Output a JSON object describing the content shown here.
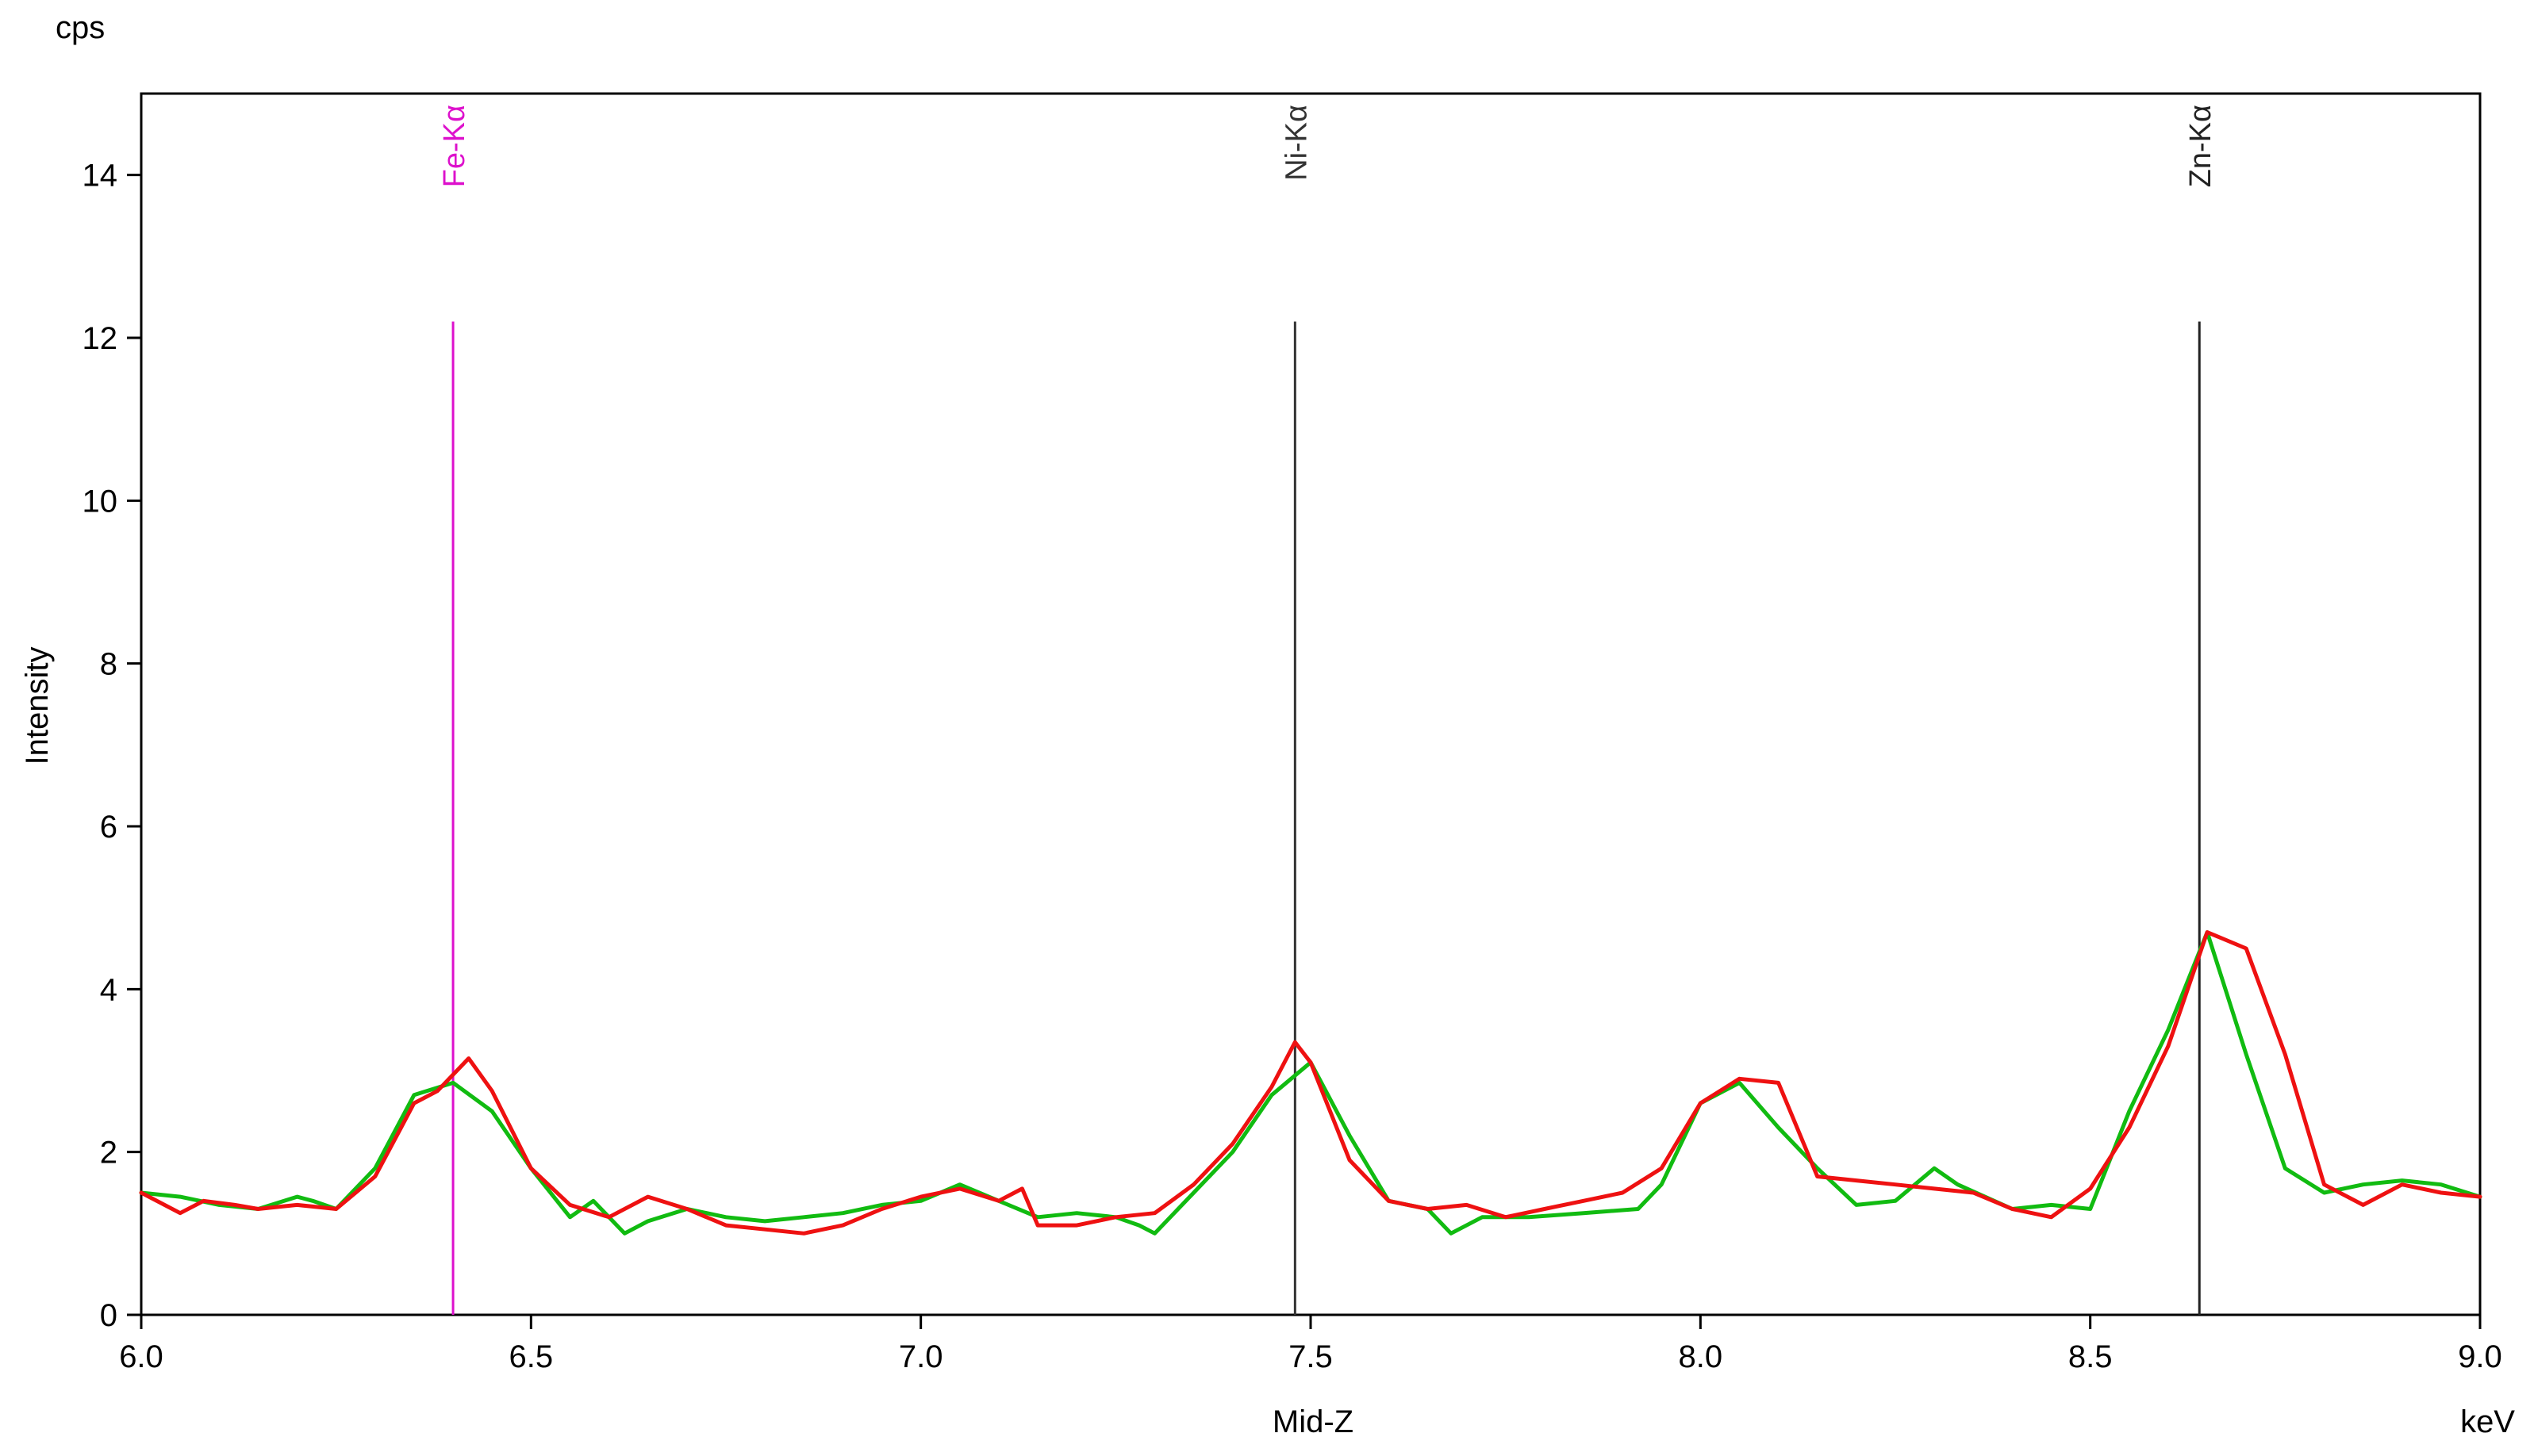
{
  "chart_data": {
    "type": "line",
    "title": "",
    "xlabel": "Mid-Z",
    "x_unit": "keV",
    "ylabel": "Intensity",
    "y_unit": "cps",
    "xlim": [
      6.0,
      9.0
    ],
    "ylim": [
      0,
      15
    ],
    "x_ticks": [
      "6.0",
      "6.5",
      "7.0",
      "7.5",
      "8.0",
      "8.5",
      "9.0"
    ],
    "y_ticks": [
      "0",
      "2",
      "4",
      "6",
      "8",
      "10",
      "12",
      "14"
    ],
    "grid": false,
    "colors": {
      "red_series": "#ee1111",
      "green_series": "#11bb11",
      "fe_line": "#dd11cc",
      "ni_line": "#333333",
      "zn_line": "#222222"
    },
    "peak_markers": [
      {
        "label": "Fe-Kα",
        "energy": 6.4,
        "top": 12.2,
        "color": "#dd11cc"
      },
      {
        "label": "Ni-Kα",
        "energy": 7.48,
        "top": 12.2,
        "color": "#333333"
      },
      {
        "label": "Zn-Kα",
        "energy": 8.64,
        "top": 12.2,
        "color": "#222222"
      }
    ],
    "series": [
      {
        "color": "#11bb11",
        "x": [
          6.0,
          6.05,
          6.1,
          6.15,
          6.2,
          6.22,
          6.25,
          6.3,
          6.35,
          6.4,
          6.45,
          6.5,
          6.55,
          6.58,
          6.62,
          6.65,
          6.7,
          6.75,
          6.8,
          6.85,
          6.9,
          6.95,
          7.0,
          7.05,
          7.1,
          7.15,
          7.2,
          7.25,
          7.28,
          7.3,
          7.35,
          7.4,
          7.45,
          7.5,
          7.55,
          7.6,
          7.65,
          7.68,
          7.72,
          7.78,
          7.85,
          7.92,
          7.95,
          8.0,
          8.05,
          8.1,
          8.15,
          8.2,
          8.25,
          8.3,
          8.33,
          8.4,
          8.45,
          8.5,
          8.55,
          8.6,
          8.65,
          8.7,
          8.75,
          8.8,
          8.85,
          8.9,
          8.95,
          9.0
        ],
        "y": [
          1.5,
          1.45,
          1.35,
          1.3,
          1.45,
          1.4,
          1.3,
          1.8,
          2.7,
          2.85,
          2.5,
          1.8,
          1.2,
          1.4,
          1.0,
          1.15,
          1.3,
          1.2,
          1.15,
          1.2,
          1.25,
          1.35,
          1.4,
          1.6,
          1.4,
          1.2,
          1.25,
          1.2,
          1.1,
          1.0,
          1.5,
          2.0,
          2.7,
          3.1,
          2.2,
          1.4,
          1.3,
          1.0,
          1.2,
          1.2,
          1.25,
          1.3,
          1.6,
          2.6,
          2.85,
          2.3,
          1.8,
          1.35,
          1.4,
          1.8,
          1.6,
          1.3,
          1.35,
          1.3,
          2.5,
          3.5,
          4.7,
          3.2,
          1.8,
          1.5,
          1.6,
          1.65,
          1.6,
          1.45
        ]
      },
      {
        "color": "#ee1111",
        "x": [
          6.0,
          6.05,
          6.08,
          6.12,
          6.15,
          6.2,
          6.25,
          6.3,
          6.35,
          6.38,
          6.42,
          6.45,
          6.5,
          6.55,
          6.6,
          6.65,
          6.7,
          6.75,
          6.8,
          6.85,
          6.9,
          6.95,
          7.0,
          7.05,
          7.1,
          7.13,
          7.15,
          7.2,
          7.25,
          7.3,
          7.35,
          7.4,
          7.45,
          7.48,
          7.5,
          7.55,
          7.6,
          7.65,
          7.7,
          7.75,
          7.8,
          7.85,
          7.9,
          7.95,
          8.0,
          8.05,
          8.1,
          8.15,
          8.2,
          8.25,
          8.3,
          8.35,
          8.4,
          8.45,
          8.5,
          8.55,
          8.6,
          8.65,
          8.7,
          8.75,
          8.8,
          8.85,
          8.9,
          8.95,
          9.0
        ],
        "y": [
          1.5,
          1.25,
          1.4,
          1.35,
          1.3,
          1.35,
          1.3,
          1.7,
          2.6,
          2.75,
          3.15,
          2.75,
          1.8,
          1.35,
          1.2,
          1.45,
          1.3,
          1.1,
          1.05,
          1.0,
          1.1,
          1.3,
          1.45,
          1.55,
          1.4,
          1.55,
          1.1,
          1.1,
          1.2,
          1.25,
          1.6,
          2.1,
          2.8,
          3.35,
          3.1,
          1.9,
          1.4,
          1.3,
          1.35,
          1.2,
          1.3,
          1.4,
          1.5,
          1.8,
          2.6,
          2.9,
          2.85,
          1.7,
          1.65,
          1.6,
          1.55,
          1.5,
          1.3,
          1.2,
          1.55,
          2.3,
          3.3,
          4.7,
          4.5,
          3.2,
          1.6,
          1.35,
          1.6,
          1.5,
          1.45
        ]
      }
    ]
  }
}
